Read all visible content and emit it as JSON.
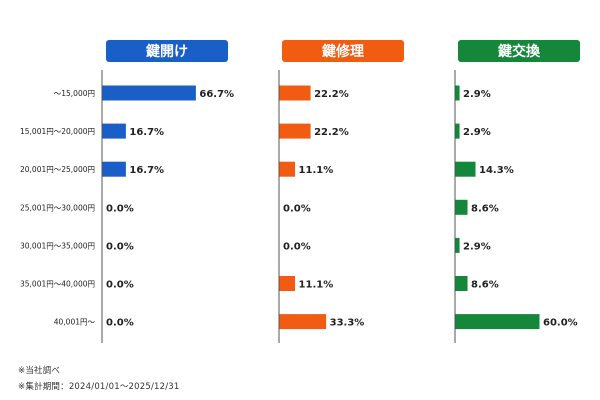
{
  "chart_data": {
    "type": "bar",
    "orientation": "horizontal",
    "categories": [
      "～15,000円",
      "15,001円～20,000円",
      "20,001円～25,000円",
      "25,001円～30,000円",
      "30,001円～35,000円",
      "35,001円～40,000円",
      "40,001円～"
    ],
    "series": [
      {
        "name": "鍵開け",
        "color": "#1a5fc8",
        "values": [
          66.7,
          16.7,
          16.7,
          0.0,
          0.0,
          0.0,
          0.0
        ]
      },
      {
        "name": "鍵修理",
        "color": "#f25c12",
        "values": [
          22.2,
          22.2,
          11.1,
          0.0,
          0.0,
          11.1,
          33.3
        ]
      },
      {
        "name": "鍵交換",
        "color": "#14873a",
        "values": [
          2.9,
          2.9,
          14.3,
          8.6,
          2.9,
          8.6,
          60.0
        ]
      }
    ],
    "value_suffix": "%",
    "xlim": [
      0,
      100
    ],
    "grid": false,
    "legend": "top"
  },
  "notes": [
    "※当社調べ",
    "※集計期間：2024/01/01～2025/12/31"
  ]
}
